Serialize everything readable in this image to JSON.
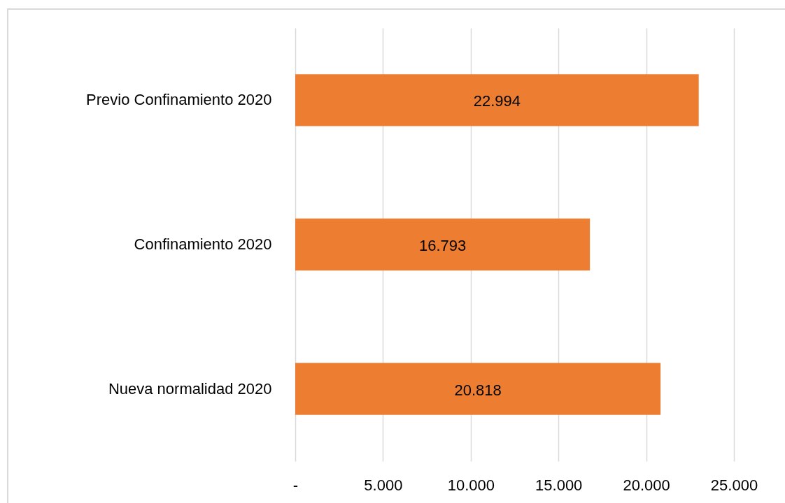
{
  "chart_data": {
    "type": "bar",
    "orientation": "horizontal",
    "categories": [
      "Previo Confinamiento 2020",
      "Confinamiento 2020",
      "Nueva normalidad 2020"
    ],
    "values": [
      22994,
      16793,
      20818
    ],
    "value_labels": [
      "22.994",
      "16.793",
      "20.818"
    ],
    "color": "#ed7d31",
    "xlim": [
      0,
      25000
    ],
    "xticks": [
      {
        "value": 0,
        "label": "-"
      },
      {
        "value": 5000,
        "label": "5.000"
      },
      {
        "value": 10000,
        "label": "10.000"
      },
      {
        "value": 15000,
        "label": "15.000"
      },
      {
        "value": 20000,
        "label": "20.000"
      },
      {
        "value": 25000,
        "label": "25.000"
      }
    ],
    "grid": "x"
  }
}
